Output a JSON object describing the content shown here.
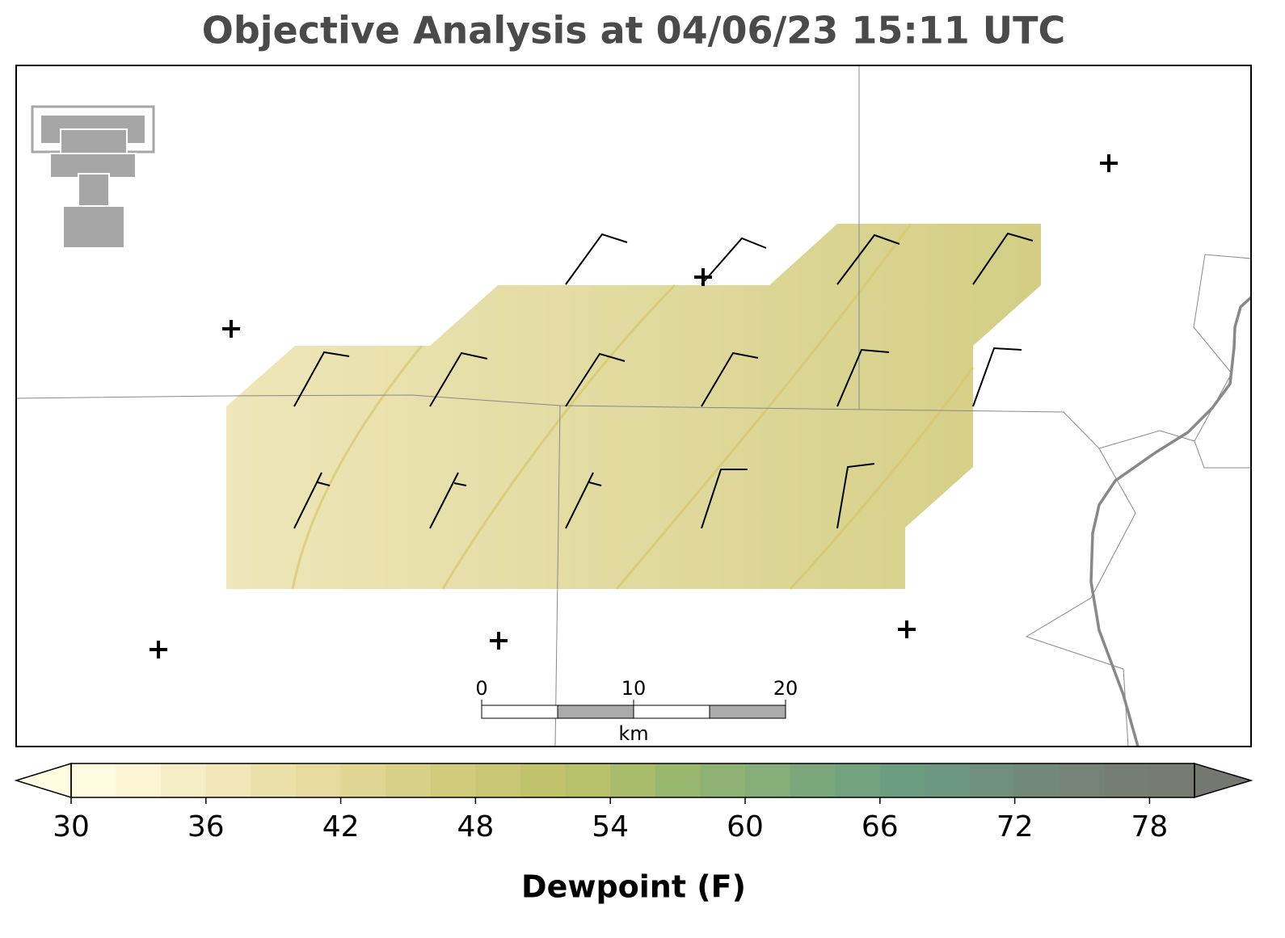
{
  "title": "Objective Analysis at 04/06/23 15:11 UTC",
  "colorbar": {
    "label": "Dewpoint (F)",
    "range": [
      30,
      80
    ],
    "ticks": [
      30,
      36,
      42,
      48,
      54,
      60,
      66,
      72,
      78
    ],
    "colors": [
      "#fffbe0",
      "#fbf5d3",
      "#f5edc6",
      "#f0e6b8",
      "#ebe0aa",
      "#e6da9e",
      "#e0d592",
      "#d9d088",
      "#d1cb7e",
      "#c9c775",
      "#c0c36c",
      "#b7c06a",
      "#a8bc6c",
      "#9ab770",
      "#8db273",
      "#84ad77",
      "#7aa87b",
      "#72a27e",
      "#6c9d81",
      "#6c9780",
      "#70907d",
      "#728979",
      "#748376",
      "#767e74",
      "#787b72"
    ],
    "extend_low": "#fffbe0",
    "extend_high": "#737871"
  },
  "scalebar": {
    "ticks": [
      0,
      10,
      20
    ],
    "unit": "km"
  }
}
